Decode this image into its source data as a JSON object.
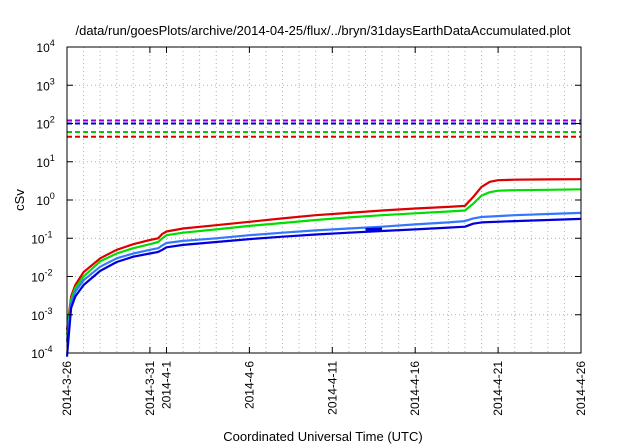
{
  "chart_data": {
    "type": "line",
    "title": "/data/run/goesPlots/archive/2014-04-25/flux/../bryn/31daysEarthDataAccumulated.plot",
    "xlabel": "Coordinated Universal Time (UTC)",
    "ylabel": "cSv",
    "x_axis": {
      "type": "date",
      "range": [
        "2014-03-26",
        "2014-04-26"
      ],
      "ticks": [
        {
          "date": "2014-03-26",
          "label": "2014-3-26"
        },
        {
          "date": "2014-03-31",
          "label": "2014-3-31"
        },
        {
          "date": "2014-04-01",
          "label": "2014-4-1"
        },
        {
          "date": "2014-04-06",
          "label": "2014-4-6"
        },
        {
          "date": "2014-04-11",
          "label": "2014-4-11"
        },
        {
          "date": "2014-04-16",
          "label": "2014-4-16"
        },
        {
          "date": "2014-04-21",
          "label": "2014-4-21"
        },
        {
          "date": "2014-04-26",
          "label": "2014-4-26"
        }
      ]
    },
    "y_axis": {
      "scale": "log",
      "range": [
        0.0001,
        10000
      ],
      "ticks": [
        {
          "value": 0.0001,
          "base": "10",
          "exp": "-4"
        },
        {
          "value": 0.001,
          "base": "10",
          "exp": "-3"
        },
        {
          "value": 0.01,
          "base": "10",
          "exp": "-2"
        },
        {
          "value": 0.1,
          "base": "10",
          "exp": "-1"
        },
        {
          "value": 1,
          "base": "10",
          "exp": "0"
        },
        {
          "value": 10,
          "base": "10",
          "exp": "1"
        },
        {
          "value": 100,
          "base": "10",
          "exp": "2"
        },
        {
          "value": 1000,
          "base": "10",
          "exp": "3"
        },
        {
          "value": 10000,
          "base": "10",
          "exp": "4"
        }
      ]
    },
    "grid": true,
    "reference_lines": [
      {
        "y": 120,
        "color": "#9900cc",
        "style": "dashed"
      },
      {
        "y": 100,
        "color": "#0000dd",
        "style": "dashed"
      },
      {
        "y": 60,
        "color": "#00cc00",
        "style": "dashed"
      },
      {
        "y": 45,
        "color": "#dd0000",
        "style": "dashed"
      }
    ],
    "series": [
      {
        "color": "#dd0000",
        "points": [
          [
            "2014-03-26T00:00",
            0.0004
          ],
          [
            "2014-03-26T06:00",
            0.003
          ],
          [
            "2014-03-26T12:00",
            0.006
          ],
          [
            "2014-03-27T00:00",
            0.013
          ],
          [
            "2014-03-28T00:00",
            0.03
          ],
          [
            "2014-03-29T00:00",
            0.05
          ],
          [
            "2014-03-30T00:00",
            0.07
          ],
          [
            "2014-03-31T00:00",
            0.09
          ],
          [
            "2014-03-31T12:00",
            0.1
          ],
          [
            "2014-03-31T18:00",
            0.13
          ],
          [
            "2014-04-01T00:00",
            0.15
          ],
          [
            "2014-04-02T00:00",
            0.18
          ],
          [
            "2014-04-04T00:00",
            0.22
          ],
          [
            "2014-04-06T00:00",
            0.27
          ],
          [
            "2014-04-08T00:00",
            0.33
          ],
          [
            "2014-04-10T00:00",
            0.4
          ],
          [
            "2014-04-12T00:00",
            0.46
          ],
          [
            "2014-04-14T00:00",
            0.53
          ],
          [
            "2014-04-16T00:00",
            0.6
          ],
          [
            "2014-04-18T00:00",
            0.66
          ],
          [
            "2014-04-19T00:00",
            0.7
          ],
          [
            "2014-04-19T12:00",
            1.2
          ],
          [
            "2014-04-20T00:00",
            2.2
          ],
          [
            "2014-04-20T12:00",
            3.0
          ],
          [
            "2014-04-21T00:00",
            3.3
          ],
          [
            "2014-04-22T00:00",
            3.4
          ],
          [
            "2014-04-24T00:00",
            3.45
          ],
          [
            "2014-04-26T00:00",
            3.5
          ]
        ]
      },
      {
        "color": "#00dd00",
        "points": [
          [
            "2014-03-26T00:00",
            0.0003
          ],
          [
            "2014-03-26T06:00",
            0.0025
          ],
          [
            "2014-03-26T12:00",
            0.005
          ],
          [
            "2014-03-27T00:00",
            0.01
          ],
          [
            "2014-03-28T00:00",
            0.025
          ],
          [
            "2014-03-29T00:00",
            0.04
          ],
          [
            "2014-03-30T00:00",
            0.055
          ],
          [
            "2014-03-31T00:00",
            0.07
          ],
          [
            "2014-03-31T12:00",
            0.08
          ],
          [
            "2014-03-31T18:00",
            0.1
          ],
          [
            "2014-04-01T00:00",
            0.12
          ],
          [
            "2014-04-02T00:00",
            0.14
          ],
          [
            "2014-04-04T00:00",
            0.17
          ],
          [
            "2014-04-06T00:00",
            0.21
          ],
          [
            "2014-04-08T00:00",
            0.25
          ],
          [
            "2014-04-10T00:00",
            0.3
          ],
          [
            "2014-04-12T00:00",
            0.35
          ],
          [
            "2014-04-14T00:00",
            0.4
          ],
          [
            "2014-04-16T00:00",
            0.45
          ],
          [
            "2014-04-18T00:00",
            0.5
          ],
          [
            "2014-04-19T00:00",
            0.53
          ],
          [
            "2014-04-19T12:00",
            0.8
          ],
          [
            "2014-04-20T00:00",
            1.3
          ],
          [
            "2014-04-20T12:00",
            1.6
          ],
          [
            "2014-04-21T00:00",
            1.75
          ],
          [
            "2014-04-22T00:00",
            1.8
          ],
          [
            "2014-04-24T00:00",
            1.85
          ],
          [
            "2014-04-26T00:00",
            1.9
          ]
        ]
      },
      {
        "color": "#3377ff",
        "points": [
          [
            "2014-03-26T00:00",
            0.0002
          ],
          [
            "2014-03-26T06:00",
            0.002
          ],
          [
            "2014-03-26T12:00",
            0.004
          ],
          [
            "2014-03-27T00:00",
            0.008
          ],
          [
            "2014-03-28T00:00",
            0.018
          ],
          [
            "2014-03-29T00:00",
            0.03
          ],
          [
            "2014-03-30T00:00",
            0.04
          ],
          [
            "2014-03-31T00:00",
            0.05
          ],
          [
            "2014-03-31T12:00",
            0.055
          ],
          [
            "2014-03-31T18:00",
            0.065
          ],
          [
            "2014-04-01T00:00",
            0.075
          ],
          [
            "2014-04-02T00:00",
            0.085
          ],
          [
            "2014-04-04T00:00",
            0.1
          ],
          [
            "2014-04-06T00:00",
            0.12
          ],
          [
            "2014-04-08T00:00",
            0.14
          ],
          [
            "2014-04-10T00:00",
            0.16
          ],
          [
            "2014-04-12T00:00",
            0.18
          ],
          [
            "2014-04-14T00:00",
            0.2
          ],
          [
            "2014-04-16T00:00",
            0.23
          ],
          [
            "2014-04-18T00:00",
            0.26
          ],
          [
            "2014-04-19T00:00",
            0.28
          ],
          [
            "2014-04-19T12:00",
            0.33
          ],
          [
            "2014-04-20T00:00",
            0.36
          ],
          [
            "2014-04-22T00:00",
            0.4
          ],
          [
            "2014-04-24T00:00",
            0.43
          ],
          [
            "2014-04-26T00:00",
            0.46
          ]
        ]
      },
      {
        "color": "#0000dd",
        "points": [
          [
            "2014-03-26T00:00",
            8e-05
          ],
          [
            "2014-03-26T06:00",
            0.0015
          ],
          [
            "2014-03-26T12:00",
            0.003
          ],
          [
            "2014-03-27T00:00",
            0.006
          ],
          [
            "2014-03-28T00:00",
            0.014
          ],
          [
            "2014-03-29T00:00",
            0.024
          ],
          [
            "2014-03-30T00:00",
            0.033
          ],
          [
            "2014-03-31T00:00",
            0.04
          ],
          [
            "2014-03-31T12:00",
            0.044
          ],
          [
            "2014-03-31T18:00",
            0.05
          ],
          [
            "2014-04-01T00:00",
            0.058
          ],
          [
            "2014-04-02T00:00",
            0.067
          ],
          [
            "2014-04-04T00:00",
            0.08
          ],
          [
            "2014-04-06T00:00",
            0.095
          ],
          [
            "2014-04-08T00:00",
            0.11
          ],
          [
            "2014-04-10T00:00",
            0.125
          ],
          [
            "2014-04-12T00:00",
            0.14
          ],
          [
            "2014-04-14T00:00",
            0.155
          ],
          [
            "2014-04-16T00:00",
            0.17
          ],
          [
            "2014-04-18T00:00",
            0.19
          ],
          [
            "2014-04-19T00:00",
            0.2
          ],
          [
            "2014-04-19T12:00",
            0.24
          ],
          [
            "2014-04-20T00:00",
            0.26
          ],
          [
            "2014-04-22T00:00",
            0.28
          ],
          [
            "2014-04-24T00:00",
            0.3
          ],
          [
            "2014-04-26T00:00",
            0.32
          ]
        ]
      }
    ],
    "annotations": [
      {
        "type": "segment",
        "color": "#0000dd",
        "from": [
          "2014-04-13T00:00",
          0.17
        ],
        "to": [
          "2014-04-14T00:00",
          0.175
        ]
      }
    ]
  }
}
